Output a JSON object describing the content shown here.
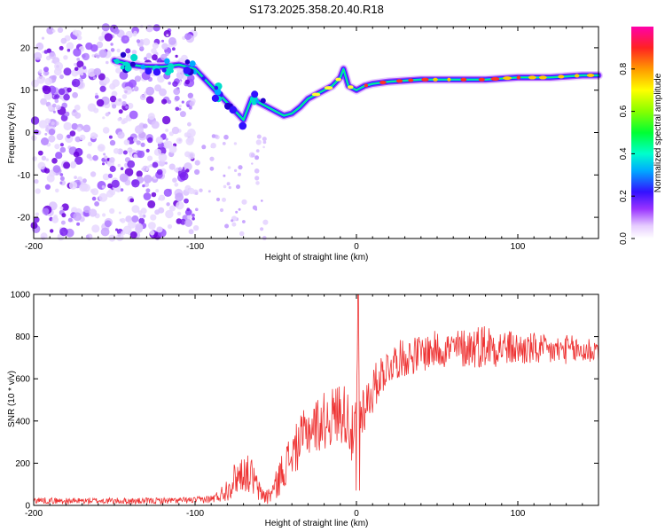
{
  "title": "S173.2025.358.20.40.R18",
  "chart_data": [
    {
      "type": "heatmap",
      "xlabel": "Height of straight line (km)",
      "ylabel": "Frequency (Hz)",
      "xlim": [
        -200,
        150
      ],
      "ylim": [
        -25,
        25
      ],
      "xticks": [
        -200,
        -100,
        0,
        100
      ],
      "xtick_labels": [
        "-200",
        "-100",
        "0",
        "100"
      ],
      "yticks": [
        20,
        10,
        0,
        -10,
        -20
      ],
      "ytick_labels": [
        "20",
        "10",
        "0",
        "-10",
        "-20"
      ],
      "ridge": {
        "x": [
          -150,
          -140,
          -130,
          -120,
          -110,
          -100,
          -95,
          -90,
          -85,
          -80,
          -75,
          -70,
          -65,
          -60,
          -55,
          -50,
          -45,
          -40,
          -35,
          -30,
          -25,
          -20,
          -15,
          -10,
          -8,
          -5,
          0,
          5,
          10,
          20,
          40,
          60,
          80,
          100,
          120,
          140,
          150
        ],
        "y": [
          17,
          16,
          15.5,
          15.5,
          16,
          15,
          13,
          11,
          9,
          7,
          5,
          3,
          8,
          7,
          6,
          5,
          4,
          4.5,
          6,
          8,
          9,
          10,
          11,
          13,
          15,
          11,
          10,
          11,
          11.5,
          12,
          12.5,
          12.5,
          12.5,
          13,
          13,
          13.5,
          13.5
        ]
      },
      "colorbar": {
        "label": "Normalized spectral amplitude",
        "range": [
          0,
          1
        ],
        "ticks": [
          0.0,
          0.2,
          0.4,
          0.6,
          0.8
        ],
        "tick_labels": [
          "0.0",
          "0.2",
          "0.4",
          "0.6",
          "0.8"
        ]
      }
    },
    {
      "type": "line",
      "xlabel": "Height of straight line (km)",
      "ylabel": "SNR (10 * v/v)",
      "xlim": [
        -200,
        150
      ],
      "ylim": [
        0,
        1000
      ],
      "xticks": [
        -200,
        -100,
        0,
        100
      ],
      "xtick_labels": [
        "-200",
        "-100",
        "0",
        "100"
      ],
      "yticks": [
        0,
        200,
        400,
        600,
        800,
        1000
      ],
      "ytick_labels": [
        "0",
        "200",
        "400",
        "600",
        "800",
        "1000"
      ],
      "series": [
        {
          "name": "SNR",
          "color": "#ee3333",
          "x": [
            -200,
            -180,
            -160,
            -140,
            -120,
            -100,
            -90,
            -85,
            -80,
            -75,
            -70,
            -65,
            -60,
            -55,
            -50,
            -45,
            -40,
            -35,
            -30,
            -25,
            -20,
            -15,
            -10,
            -5,
            -2,
            0,
            1,
            2,
            5,
            10,
            15,
            20,
            25,
            30,
            40,
            50,
            60,
            70,
            80,
            90,
            100,
            110,
            120,
            130,
            140,
            150
          ],
          "values": [
            25,
            20,
            22,
            20,
            22,
            25,
            30,
            45,
            80,
            130,
            160,
            140,
            60,
            40,
            90,
            180,
            240,
            300,
            360,
            380,
            400,
            420,
            450,
            420,
            300,
            380,
            1000,
            450,
            470,
            540,
            620,
            660,
            690,
            700,
            720,
            740,
            740,
            750,
            760,
            750,
            740,
            740,
            730,
            740,
            730,
            740
          ],
          "noise_amplitude": [
            15,
            15,
            15,
            15,
            15,
            15,
            20,
            30,
            60,
            80,
            90,
            90,
            50,
            40,
            70,
            100,
            110,
            120,
            130,
            130,
            140,
            140,
            150,
            150,
            150,
            150,
            0,
            150,
            120,
            110,
            100,
            90,
            90,
            90,
            90,
            90,
            90,
            100,
            110,
            90,
            80,
            80,
            70,
            70,
            70,
            70
          ]
        }
      ]
    }
  ]
}
